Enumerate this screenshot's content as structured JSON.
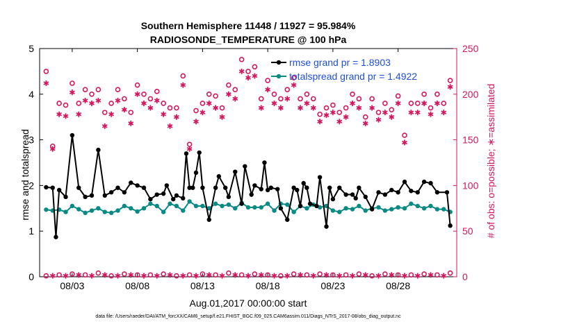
{
  "colors": {
    "rmse": "#000000",
    "spread": "#0a8a84",
    "obs": "#d6155f",
    "legend_text": "#1f4fd8"
  },
  "footer": "data file: /Users/raeder/DAI/ATM_forcXX/CAM6_setup/f.e21.FHIST_BGC.f09_025.CAM6assim.011/Diags_NTrS_2017-08/obs_diag_output.nc",
  "chart_data": {
    "type": "line",
    "title": "Southern Hemisphere 11448 / 11927 = 95.984%",
    "subtitle": "RADIOSONDE_TEMPERATURE @ 100 hPa",
    "xlabel": "Aug.01,2017 00:00:00 start",
    "ylabel_left": "rmse and totalspread",
    "ylabel_right": "# of obs: o=possible; ∗=assimilated",
    "xlim": [
      0.5,
      32.5
    ],
    "ylim_left": [
      0,
      5
    ],
    "ylim_right": [
      0,
      250
    ],
    "x_ticks": [
      3,
      8,
      13,
      18,
      23,
      28
    ],
    "x_tick_labels": [
      "08/03",
      "08/08",
      "08/13",
      "08/18",
      "08/23",
      "08/28"
    ],
    "y_ticks_left": [
      0,
      1,
      2,
      3,
      4,
      5
    ],
    "y_ticks_right": [
      0,
      50,
      100,
      150,
      200,
      250
    ],
    "legend": [
      "rmse grand pr = 1.8903",
      "totalspread grand pr = 1.4922"
    ],
    "series": [
      {
        "name": "rmse",
        "axis": "left",
        "x": [
          1,
          1.5,
          1.75,
          2,
          2.5,
          3,
          3.5,
          4,
          4.5,
          5,
          5.5,
          6,
          6.5,
          7,
          7.5,
          8,
          8.5,
          9,
          9.5,
          10,
          10.25,
          10.75,
          11,
          11.5,
          11.75,
          12,
          12.25,
          12.5,
          12.75,
          13,
          13.5,
          14,
          14.25,
          14.75,
          15,
          15.5,
          16,
          16.25,
          16.75,
          17,
          17.5,
          17.75,
          18,
          18.25,
          18.75,
          19,
          19.5,
          20,
          20.25,
          20.5,
          20.75,
          21,
          21.25,
          21.75,
          22,
          22.5,
          22.75,
          23,
          23.5,
          24,
          24.5,
          24.75,
          25,
          25.5,
          26,
          26.5,
          27,
          27.5,
          28,
          28.5,
          29,
          29.5,
          30,
          30.5,
          31,
          31.75,
          32
        ],
        "values": [
          1.96,
          1.95,
          0.87,
          1.9,
          1.75,
          3.1,
          1.95,
          1.75,
          1.78,
          2.78,
          1.78,
          1.85,
          1.95,
          1.85,
          2.06,
          2.0,
          1.95,
          1.7,
          1.8,
          1.82,
          2.0,
          1.7,
          1.78,
          1.72,
          2.7,
          1.95,
          1.95,
          2.28,
          2.72,
          1.95,
          1.25,
          1.95,
          2.2,
          1.95,
          1.75,
          2.3,
          1.6,
          2.42,
          1.8,
          2.0,
          1.92,
          2.5,
          1.9,
          1.95,
          1.92,
          1.5,
          1.25,
          1.95,
          1.9,
          1.55,
          2.05,
          1.95,
          1.6,
          1.55,
          2.18,
          1.1,
          1.95,
          1.7,
          1.95,
          1.8,
          1.8,
          1.72,
          1.95,
          1.75,
          1.48,
          1.85,
          1.8,
          1.9,
          1.85,
          2.08,
          1.88,
          1.85,
          2.08,
          2.05,
          1.85,
          1.85,
          1.12
        ]
      },
      {
        "name": "totalspread",
        "axis": "left",
        "x": [
          1,
          1.5,
          2,
          2.5,
          3,
          3.5,
          4,
          4.5,
          5,
          5.5,
          6,
          6.5,
          7,
          7.5,
          8,
          8.5,
          9,
          9.5,
          10,
          10.5,
          11,
          11.5,
          12,
          12.5,
          13,
          13.5,
          14,
          14.5,
          15,
          15.5,
          16,
          16.5,
          17,
          17.5,
          18,
          18.5,
          19,
          19.5,
          20,
          20.5,
          21,
          21.5,
          22,
          22.5,
          23,
          23.5,
          24,
          24.5,
          25,
          25.5,
          26,
          26.5,
          27,
          27.5,
          28,
          28.5,
          29,
          29.5,
          30,
          30.5,
          31,
          31.5,
          32
        ],
        "values": [
          1.47,
          1.45,
          1.47,
          1.42,
          1.55,
          1.48,
          1.4,
          1.45,
          1.5,
          1.42,
          1.4,
          1.45,
          1.55,
          1.5,
          1.43,
          1.5,
          1.6,
          1.55,
          1.42,
          1.6,
          1.55,
          1.45,
          1.65,
          1.55,
          1.55,
          1.5,
          1.6,
          1.55,
          1.58,
          1.5,
          1.62,
          1.52,
          1.52,
          1.52,
          1.6,
          1.45,
          1.6,
          1.58,
          1.42,
          1.55,
          1.5,
          1.58,
          1.52,
          1.55,
          1.45,
          1.42,
          1.5,
          1.48,
          1.55,
          1.45,
          1.5,
          1.52,
          1.45,
          1.48,
          1.52,
          1.5,
          1.6,
          1.55,
          1.5,
          1.55,
          1.48,
          1.48,
          1.42
        ]
      },
      {
        "name": "obs possible",
        "axis": "right",
        "x": [
          1,
          1.5,
          2,
          2.5,
          3,
          3.5,
          4,
          4.5,
          5,
          5.5,
          6,
          6.5,
          7,
          7.5,
          8,
          8.5,
          9,
          9.5,
          10,
          10.5,
          11,
          11.5,
          12,
          12.5,
          13,
          13.5,
          14,
          14.5,
          15,
          15.5,
          16,
          16.5,
          17,
          17.5,
          18,
          18.5,
          19,
          19.5,
          20,
          20.5,
          21,
          21.5,
          22,
          22.5,
          23,
          23.5,
          24,
          24.5,
          25,
          25.5,
          26,
          26.5,
          27,
          27.5,
          28,
          28.5,
          29,
          29.5,
          30,
          30.5,
          31,
          31.5,
          32
        ],
        "values": [
          225,
          143,
          190,
          188,
          212,
          190,
          205,
          200,
          205,
          180,
          190,
          205,
          195,
          180,
          210,
          200,
          195,
          203,
          190,
          185,
          185,
          220,
          145,
          182,
          190,
          200,
          198,
          185,
          210,
          205,
          238,
          225,
          230,
          195,
          215,
          200,
          195,
          205,
          218,
          195,
          200,
          195,
          178,
          185,
          188,
          180,
          185,
          200,
          195,
          175,
          195,
          180,
          190,
          183,
          198,
          155,
          190,
          190,
          200,
          185,
          200,
          190,
          215
        ]
      },
      {
        "name": "obs assimilated",
        "axis": "right",
        "x": [
          1,
          1.5,
          2,
          2.5,
          3,
          3.5,
          4,
          4.5,
          5,
          5.5,
          6,
          6.5,
          7,
          7.5,
          8,
          8.5,
          9,
          9.5,
          10,
          10.5,
          11,
          11.5,
          12,
          12.5,
          13,
          13.5,
          14,
          14.5,
          15,
          15.5,
          16,
          16.5,
          17,
          17.5,
          18,
          18.5,
          19,
          19.5,
          20,
          20.5,
          21,
          21.5,
          22,
          22.5,
          23,
          23.5,
          24,
          24.5,
          25,
          25.5,
          26,
          26.5,
          27,
          27.5,
          28,
          28.5,
          29,
          29.5,
          30,
          30.5,
          31,
          31.5,
          32
        ],
        "values": [
          212,
          140,
          178,
          176,
          202,
          178,
          193,
          190,
          193,
          165,
          178,
          193,
          183,
          168,
          200,
          190,
          185,
          193,
          178,
          165,
          175,
          210,
          140,
          170,
          180,
          190,
          185,
          175,
          200,
          195,
          225,
          218,
          220,
          185,
          205,
          190,
          185,
          195,
          210,
          185,
          190,
          185,
          170,
          177,
          180,
          170,
          175,
          190,
          185,
          168,
          185,
          172,
          180,
          175,
          190,
          147,
          180,
          180,
          190,
          178,
          190,
          180,
          208
        ]
      },
      {
        "name": "obs near zero possible",
        "axis": "right",
        "x": [
          1,
          2,
          3,
          4,
          5,
          6,
          7,
          8,
          9,
          10,
          11,
          12,
          13,
          14,
          15,
          16,
          17,
          18,
          19,
          20,
          21,
          22,
          23,
          24,
          25,
          26,
          27,
          28,
          29,
          30,
          31,
          32
        ],
        "values": [
          1,
          2,
          3,
          2,
          4,
          1,
          3,
          2,
          2,
          3,
          1,
          2,
          3,
          2,
          4,
          2,
          3,
          2,
          1,
          3,
          2,
          3,
          2,
          2,
          3,
          1,
          3,
          2,
          2,
          3,
          2,
          4
        ]
      },
      {
        "name": "obs near zero assimilated",
        "axis": "right",
        "x": [
          1.5,
          2.5,
          3.5,
          4.5,
          5.5,
          6.5,
          7.5,
          8.5,
          9.5,
          10.5,
          11.5,
          12.5,
          13.5,
          14.5,
          15.5,
          16.5,
          17.5,
          18.5,
          19.5,
          20.5,
          21.5,
          22.5,
          23.5,
          24.5,
          25.5,
          26.5,
          27.5,
          28.5,
          29.5,
          30.5,
          31.5
        ],
        "values": [
          1,
          1,
          2,
          1,
          2,
          1,
          2,
          1,
          1,
          2,
          1,
          1,
          2,
          1,
          2,
          1,
          2,
          1,
          1,
          2,
          1,
          2,
          1,
          1,
          2,
          1,
          2,
          1,
          1,
          2,
          1
        ]
      }
    ]
  }
}
